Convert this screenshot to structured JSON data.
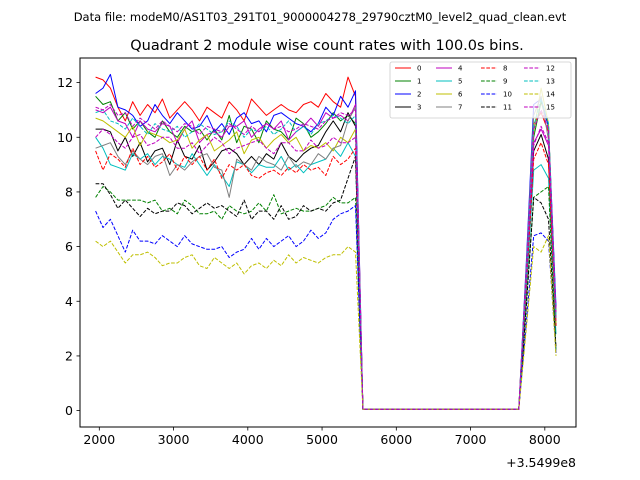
{
  "chart_data": {
    "type": "line",
    "suptitle": "Data file: modeM0/AS1T03_291T01_9000004278_29790cztM0_level2_quad_clean.evt",
    "title": "Quadrant 2 module wise count rates with 100.0s bins.",
    "xlabel": "",
    "ylabel": "",
    "x_offset_label": "+3.5499e8",
    "xlim": [
      1740,
      8420
    ],
    "ylim": [
      -0.6,
      12.9
    ],
    "xticks": [
      2000,
      3000,
      4000,
      5000,
      6000,
      7000,
      8000
    ],
    "yticks": [
      0,
      2,
      4,
      6,
      8,
      10,
      12
    ],
    "grid": false,
    "legend_position": "top-right",
    "x": [
      1950,
      2050,
      2150,
      2250,
      2350,
      2450,
      2550,
      2650,
      2750,
      2850,
      2950,
      3050,
      3150,
      3250,
      3350,
      3450,
      3550,
      3650,
      3750,
      3850,
      3950,
      4050,
      4150,
      4250,
      4350,
      4450,
      4550,
      4650,
      4750,
      4850,
      4950,
      5050,
      5150,
      5250,
      5350,
      5450,
      5550,
      5650,
      5750,
      5850,
      5950,
      6050,
      6150,
      6250,
      6350,
      6450,
      6550,
      6650,
      6750,
      6850,
      6950,
      7050,
      7150,
      7250,
      7350,
      7450,
      7550,
      7650,
      7750,
      7850,
      7950,
      8050,
      8150
    ],
    "series": [
      {
        "name": "0",
        "color": "#ff0000",
        "dash": "solid",
        "values": [
          12.2,
          12.1,
          11.8,
          11.1,
          10.6,
          11.3,
          10.8,
          11.2,
          10.9,
          11.4,
          10.7,
          11.0,
          11.3,
          11.0,
          10.6,
          11.1,
          10.9,
          10.7,
          11.3,
          11.0,
          10.6,
          11.4,
          11.1,
          10.8,
          11.0,
          11.2,
          11.0,
          10.9,
          11.2,
          11.3,
          11.1,
          11.6,
          11.3,
          11.1,
          12.2,
          11.5,
          0.05,
          0.05,
          0.05,
          0.05,
          0.05,
          0.05,
          0.05,
          0.05,
          0.05,
          0.05,
          0.05,
          0.05,
          0.05,
          0.05,
          0.05,
          0.05,
          0.05,
          0.05,
          0.05,
          0.05,
          0.05,
          0.05,
          5.2,
          10.5,
          10.9,
          10.2,
          3.6
        ]
      },
      {
        "name": "1",
        "color": "#008000",
        "dash": "solid",
        "values": [
          11.5,
          11.2,
          11.3,
          10.6,
          10.9,
          10.3,
          10.6,
          10.2,
          10.0,
          10.6,
          10.2,
          10.0,
          10.4,
          10.2,
          10.3,
          9.9,
          10.3,
          9.9,
          10.8,
          9.8,
          10.4,
          10.3,
          9.8,
          10.6,
          10.3,
          10.2,
          9.9,
          10.7,
          10.5,
          10.0,
          10.2,
          10.5,
          10.9,
          10.6,
          10.8,
          10.5,
          0.05,
          0.05,
          0.05,
          0.05,
          0.05,
          0.05,
          0.05,
          0.05,
          0.05,
          0.05,
          0.05,
          0.05,
          0.05,
          0.05,
          0.05,
          0.05,
          0.05,
          0.05,
          0.05,
          0.05,
          0.05,
          0.05,
          4.9,
          10.0,
          11.3,
          10.4,
          3.4
        ]
      },
      {
        "name": "2",
        "color": "#0000ff",
        "dash": "solid",
        "values": [
          11.6,
          11.8,
          12.3,
          11.1,
          11.0,
          10.8,
          10.4,
          10.6,
          11.2,
          10.8,
          10.5,
          10.9,
          10.6,
          10.3,
          10.4,
          10.8,
          10.2,
          10.5,
          10.1,
          10.7,
          10.9,
          10.5,
          10.6,
          10.2,
          10.8,
          10.9,
          10.7,
          10.5,
          10.4,
          10.2,
          10.5,
          11.1,
          10.8,
          11.5,
          11.1,
          11.7,
          0.05,
          0.05,
          0.05,
          0.05,
          0.05,
          0.05,
          0.05,
          0.05,
          0.05,
          0.05,
          0.05,
          0.05,
          0.05,
          0.05,
          0.05,
          0.05,
          0.05,
          0.05,
          0.05,
          0.05,
          0.05,
          0.05,
          5.4,
          11.2,
          11.4,
          10.4,
          3.8
        ]
      },
      {
        "name": "3",
        "color": "#000000",
        "dash": "solid",
        "values": [
          10.3,
          10.3,
          10.2,
          9.5,
          10.0,
          9.3,
          9.8,
          9.1,
          9.5,
          9.6,
          9.0,
          9.9,
          9.3,
          9.2,
          9.7,
          8.8,
          9.1,
          9.5,
          9.6,
          9.4,
          9.0,
          9.3,
          9.0,
          9.4,
          9.2,
          9.8,
          9.3,
          9.1,
          9.4,
          9.6,
          9.7,
          10.2,
          10.6,
          10.2,
          10.9,
          10.4,
          0.05,
          0.05,
          0.05,
          0.05,
          0.05,
          0.05,
          0.05,
          0.05,
          0.05,
          0.05,
          0.05,
          0.05,
          0.05,
          0.05,
          0.05,
          0.05,
          0.05,
          0.05,
          0.05,
          0.05,
          0.05,
          0.05,
          4.6,
          9.5,
          10.1,
          9.2,
          3.1
        ]
      },
      {
        "name": "4",
        "color": "#bf00bf",
        "dash": "solid",
        "values": [
          11.0,
          10.9,
          11.1,
          10.6,
          10.5,
          10.0,
          10.6,
          10.3,
          10.2,
          10.5,
          10.4,
          9.8,
          10.3,
          10.6,
          9.8,
          10.1,
          10.2,
          10.0,
          10.4,
          10.4,
          10.6,
          10.0,
          10.3,
          10.5,
          10.3,
          10.6,
          9.9,
          10.2,
          10.4,
          10.7,
          10.4,
          10.9,
          10.7,
          10.8,
          10.6,
          11.2,
          0.05,
          0.05,
          0.05,
          0.05,
          0.05,
          0.05,
          0.05,
          0.05,
          0.05,
          0.05,
          0.05,
          0.05,
          0.05,
          0.05,
          0.05,
          0.05,
          0.05,
          0.05,
          0.05,
          0.05,
          0.05,
          0.05,
          4.8,
          9.8,
          10.3,
          9.7,
          3.3
        ]
      },
      {
        "name": "5",
        "color": "#00bfbf",
        "dash": "solid",
        "values": [
          10.0,
          9.6,
          9.0,
          8.9,
          8.8,
          9.4,
          9.2,
          9.4,
          9.0,
          9.3,
          9.2,
          9.0,
          8.9,
          9.4,
          9.0,
          8.6,
          9.0,
          8.6,
          8.2,
          9.1,
          9.0,
          8.7,
          9.0,
          8.9,
          8.9,
          9.3,
          8.8,
          9.0,
          8.7,
          9.0,
          9.1,
          9.2,
          9.6,
          9.3,
          9.8,
          9.3,
          0.05,
          0.05,
          0.05,
          0.05,
          0.05,
          0.05,
          0.05,
          0.05,
          0.05,
          0.05,
          0.05,
          0.05,
          0.05,
          0.05,
          0.05,
          0.05,
          0.05,
          0.05,
          0.05,
          0.05,
          0.05,
          0.05,
          4.3,
          8.8,
          9.0,
          8.5,
          2.8
        ]
      },
      {
        "name": "6",
        "color": "#bfbf00",
        "dash": "solid",
        "values": [
          10.7,
          10.6,
          10.4,
          10.2,
          10.0,
          10.4,
          9.7,
          10.2,
          10.1,
          10.0,
          9.8,
          9.9,
          10.3,
          9.6,
          9.9,
          10.1,
          9.5,
          9.7,
          9.9,
          10.2,
          9.4,
          9.9,
          10.0,
          9.6,
          9.9,
          10.1,
          9.8,
          10.0,
          9.5,
          9.7,
          9.6,
          9.8,
          9.5,
          10.0,
          9.8,
          10.3,
          0.05,
          0.05,
          0.05,
          0.05,
          0.05,
          0.05,
          0.05,
          0.05,
          0.05,
          0.05,
          0.05,
          0.05,
          0.05,
          0.05,
          0.05,
          0.05,
          0.05,
          0.05,
          0.05,
          0.05,
          0.05,
          0.05,
          5.0,
          10.2,
          11.8,
          10.5,
          3.2
        ]
      },
      {
        "name": "7",
        "color": "#808080",
        "dash": "solid",
        "values": [
          9.6,
          9.7,
          9.8,
          9.3,
          9.0,
          9.5,
          9.2,
          9.0,
          9.3,
          9.4,
          8.6,
          9.0,
          8.8,
          9.1,
          9.3,
          9.4,
          8.9,
          8.8,
          7.8,
          9.2,
          9.0,
          8.8,
          9.3,
          9.1,
          9.0,
          8.8,
          9.3,
          8.9,
          9.1,
          9.0,
          9.4,
          9.2,
          9.6,
          9.7,
          10.6,
          11.1,
          0.05,
          0.05,
          0.05,
          0.05,
          0.05,
          0.05,
          0.05,
          0.05,
          0.05,
          0.05,
          0.05,
          0.05,
          0.05,
          0.05,
          0.05,
          0.05,
          0.05,
          0.05,
          0.05,
          0.05,
          0.05,
          0.05,
          5.2,
          10.8,
          11.5,
          9.9,
          3.5
        ]
      },
      {
        "name": "8",
        "color": "#ff0000",
        "dash": "dashed",
        "values": [
          9.5,
          8.8,
          9.4,
          9.2,
          8.9,
          9.6,
          9.0,
          9.3,
          8.9,
          9.1,
          9.4,
          8.8,
          9.3,
          9.0,
          9.3,
          8.8,
          9.2,
          8.5,
          9.0,
          8.8,
          9.0,
          8.6,
          8.5,
          8.7,
          8.8,
          8.6,
          8.9,
          8.7,
          9.0,
          8.8,
          8.9,
          8.6,
          9.3,
          9.0,
          9.2,
          9.6,
          0.05,
          0.05,
          0.05,
          0.05,
          0.05,
          0.05,
          0.05,
          0.05,
          0.05,
          0.05,
          0.05,
          0.05,
          0.05,
          0.05,
          0.05,
          0.05,
          0.05,
          0.05,
          0.05,
          0.05,
          0.05,
          0.05,
          4.5,
          9.2,
          9.8,
          9.0,
          3.1
        ]
      },
      {
        "name": "9",
        "color": "#008000",
        "dash": "dashed",
        "values": [
          7.8,
          8.2,
          8.0,
          7.7,
          7.7,
          7.7,
          7.7,
          7.6,
          7.7,
          7.3,
          7.4,
          7.2,
          7.7,
          7.5,
          7.2,
          7.2,
          7.3,
          7.0,
          7.5,
          7.3,
          7.2,
          7.3,
          7.6,
          7.3,
          7.9,
          7.2,
          7.3,
          7.4,
          7.3,
          7.3,
          7.4,
          7.5,
          7.8,
          7.6,
          7.6,
          7.8,
          0.05,
          0.05,
          0.05,
          0.05,
          0.05,
          0.05,
          0.05,
          0.05,
          0.05,
          0.05,
          0.05,
          0.05,
          0.05,
          0.05,
          0.05,
          0.05,
          0.05,
          0.05,
          0.05,
          0.05,
          0.05,
          0.05,
          3.9,
          7.8,
          8.0,
          8.2,
          2.2
        ]
      },
      {
        "name": "10",
        "color": "#0000ff",
        "dash": "dashed",
        "values": [
          7.3,
          6.7,
          7.0,
          6.4,
          5.8,
          6.6,
          6.2,
          6.2,
          6.1,
          6.4,
          6.2,
          6.0,
          6.4,
          6.1,
          6.0,
          5.9,
          5.9,
          6.0,
          5.6,
          5.8,
          5.9,
          6.3,
          5.9,
          6.3,
          6.0,
          6.2,
          6.4,
          6.0,
          6.2,
          6.6,
          6.3,
          6.5,
          7.0,
          7.2,
          7.3,
          7.5,
          0.05,
          0.05,
          0.05,
          0.05,
          0.05,
          0.05,
          0.05,
          0.05,
          0.05,
          0.05,
          0.05,
          0.05,
          0.05,
          0.05,
          0.05,
          0.05,
          0.05,
          0.05,
          0.05,
          0.05,
          0.05,
          0.05,
          3.2,
          6.4,
          6.5,
          6.2,
          2.1
        ]
      },
      {
        "name": "11",
        "color": "#000000",
        "dash": "dashed",
        "values": [
          8.3,
          8.3,
          7.9,
          7.4,
          7.7,
          7.4,
          7.1,
          7.4,
          7.2,
          7.3,
          7.3,
          7.6,
          7.5,
          7.2,
          7.4,
          7.6,
          7.4,
          7.5,
          7.3,
          7.1,
          7.7,
          7.0,
          7.3,
          7.3,
          7.0,
          7.5,
          7.0,
          7.1,
          7.5,
          7.3,
          7.4,
          7.3,
          7.6,
          7.7,
          8.5,
          9.3,
          0.05,
          0.05,
          0.05,
          0.05,
          0.05,
          0.05,
          0.05,
          0.05,
          0.05,
          0.05,
          0.05,
          0.05,
          0.05,
          0.05,
          0.05,
          0.05,
          0.05,
          0.05,
          0.05,
          0.05,
          0.05,
          0.05,
          3.8,
          7.8,
          7.6,
          7.0,
          2.3
        ]
      },
      {
        "name": "12",
        "color": "#bf00bf",
        "dash": "dashed",
        "values": [
          10.0,
          10.3,
          10.1,
          9.8,
          9.6,
          10.0,
          10.1,
          9.7,
          9.8,
          10.0,
          10.0,
          9.6,
          9.6,
          9.8,
          9.4,
          9.7,
          10.0,
          9.8,
          9.4,
          9.6,
          9.7,
          9.8,
          9.9,
          9.6,
          9.4,
          9.8,
          9.8,
          9.5,
          9.5,
          9.9,
          9.6,
          9.7,
          10.0,
          9.8,
          9.8,
          10.0,
          0.05,
          0.05,
          0.05,
          0.05,
          0.05,
          0.05,
          0.05,
          0.05,
          0.05,
          0.05,
          0.05,
          0.05,
          0.05,
          0.05,
          0.05,
          0.05,
          0.05,
          0.05,
          0.05,
          0.05,
          0.05,
          0.05,
          4.7,
          9.7,
          10.4,
          9.8,
          3.3
        ]
      },
      {
        "name": "13",
        "color": "#00bfbf",
        "dash": "dashed",
        "values": [
          10.9,
          11.0,
          10.6,
          10.5,
          10.3,
          10.7,
          10.4,
          10.1,
          10.5,
          10.3,
          10.2,
          10.4,
          10.0,
          10.2,
          10.5,
          10.3,
          10.1,
          10.2,
          10.6,
          10.4,
          10.0,
          10.3,
          10.2,
          10.4,
          10.1,
          10.3,
          10.6,
          10.2,
          10.4,
          10.1,
          10.5,
          10.6,
          10.8,
          10.7,
          10.5,
          10.8,
          0.05,
          0.05,
          0.05,
          0.05,
          0.05,
          0.05,
          0.05,
          0.05,
          0.05,
          0.05,
          0.05,
          0.05,
          0.05,
          0.05,
          0.05,
          0.05,
          0.05,
          0.05,
          0.05,
          0.05,
          0.05,
          0.05,
          4.9,
          10.4,
          11.4,
          10.5,
          3.4
        ]
      },
      {
        "name": "14",
        "color": "#bfbf00",
        "dash": "dashed",
        "values": [
          6.2,
          6.0,
          6.2,
          5.8,
          5.4,
          5.7,
          5.7,
          5.8,
          5.6,
          5.3,
          5.4,
          5.4,
          5.6,
          5.7,
          5.3,
          5.2,
          5.6,
          5.4,
          5.2,
          5.4,
          5.0,
          5.3,
          5.4,
          5.2,
          5.5,
          5.3,
          5.7,
          5.4,
          5.6,
          5.5,
          5.4,
          5.6,
          5.7,
          5.7,
          6.0,
          5.8,
          0.05,
          0.05,
          0.05,
          0.05,
          0.05,
          0.05,
          0.05,
          0.05,
          0.05,
          0.05,
          0.05,
          0.05,
          0.05,
          0.05,
          0.05,
          0.05,
          0.05,
          0.05,
          0.05,
          0.05,
          0.05,
          0.05,
          3.0,
          6.0,
          5.8,
          6.4,
          2.0
        ]
      },
      {
        "name": "15",
        "color": "#bf00bf",
        "dash": "dashed",
        "values": [
          11.1,
          11.0,
          11.2,
          10.8,
          10.9,
          10.4,
          10.7,
          10.5,
          10.3,
          10.6,
          10.4,
          10.2,
          10.5,
          10.4,
          10.1,
          10.4,
          10.3,
          10.2,
          10.5,
          10.3,
          10.1,
          10.4,
          10.2,
          10.5,
          10.3,
          10.4,
          10.2,
          10.3,
          10.5,
          10.4,
          10.3,
          10.6,
          10.7,
          10.9,
          10.8,
          11.0,
          0.05,
          0.05,
          0.05,
          0.05,
          0.05,
          0.05,
          0.05,
          0.05,
          0.05,
          0.05,
          0.05,
          0.05,
          0.05,
          0.05,
          0.05,
          0.05,
          0.05,
          0.05,
          0.05,
          0.05,
          0.05,
          0.05,
          5.1,
          10.3,
          11.0,
          10.3,
          3.6
        ]
      }
    ]
  }
}
